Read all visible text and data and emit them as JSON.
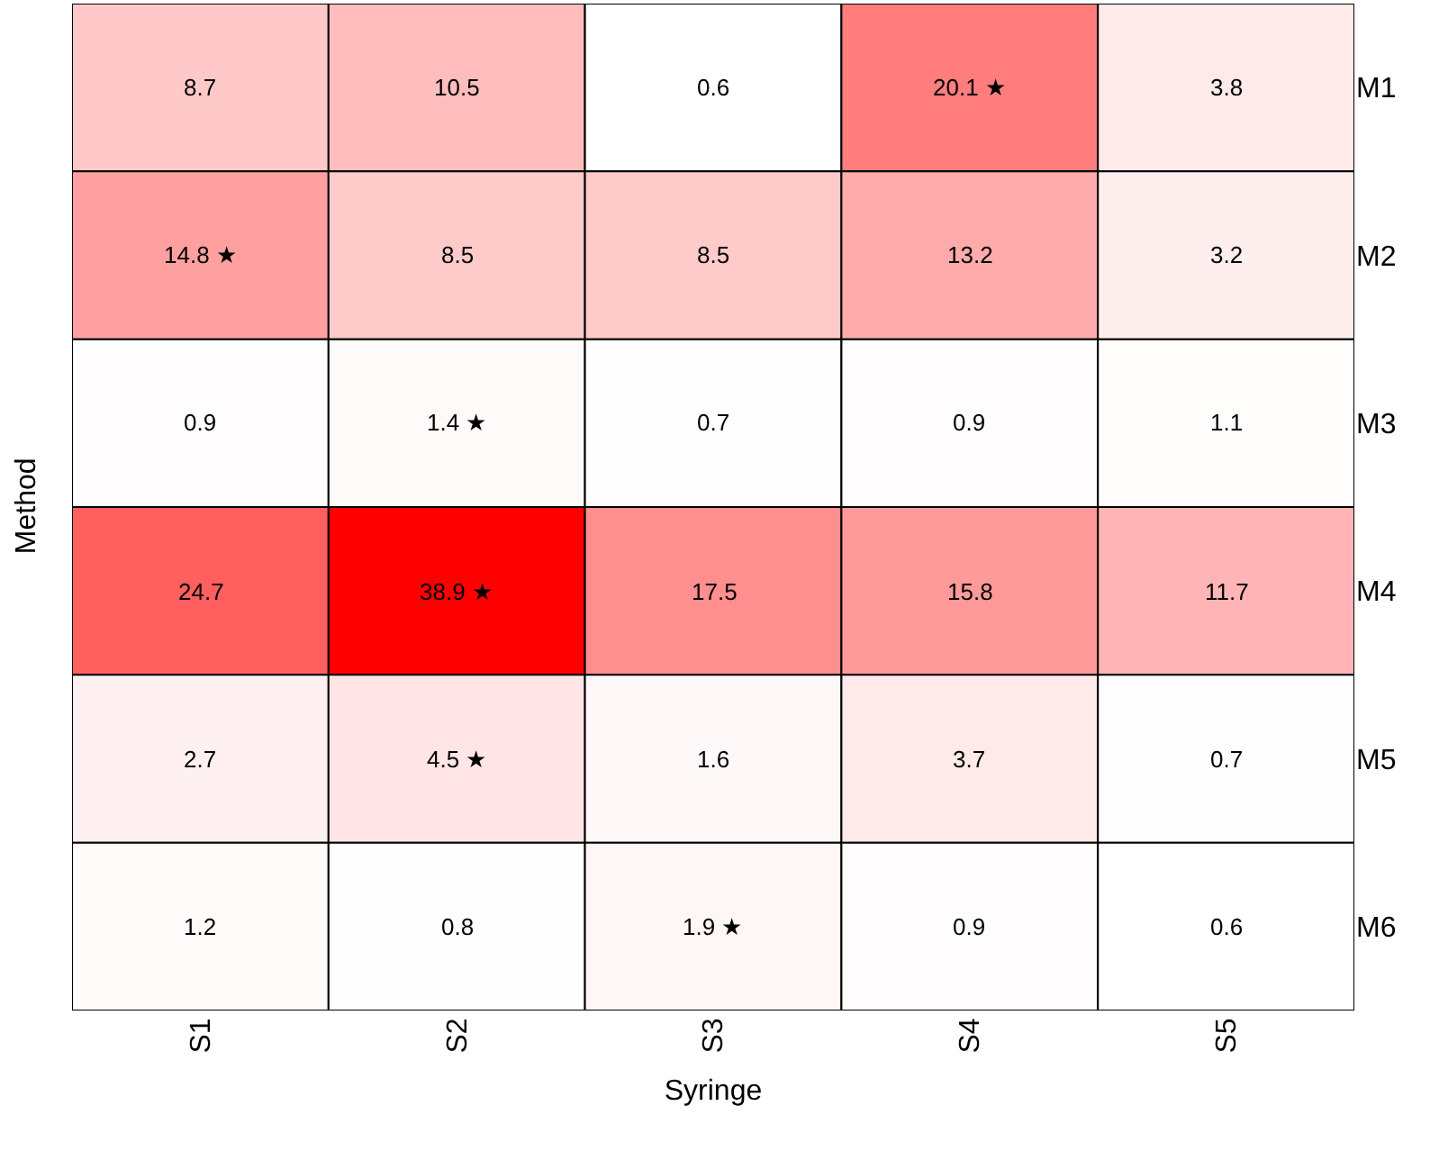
{
  "chart_data": {
    "type": "heatmap",
    "xlabel": "Syringe",
    "ylabel": "Method",
    "categories": [
      "S1",
      "S2",
      "S3",
      "S4",
      "S5"
    ],
    "y_categories": [
      "M1",
      "M2",
      "M3",
      "M4",
      "M5",
      "M6"
    ],
    "cells": [
      [
        8.7,
        10.5,
        0.6,
        20.1,
        3.8
      ],
      [
        14.8,
        8.5,
        8.5,
        13.2,
        3.2
      ],
      [
        0.9,
        1.4,
        0.7,
        0.9,
        1.1
      ],
      [
        24.7,
        38.9,
        17.5,
        15.8,
        11.7
      ],
      [
        2.7,
        4.5,
        1.6,
        3.7,
        0.7
      ],
      [
        1.2,
        0.8,
        1.9,
        0.9,
        0.6
      ]
    ],
    "cell_labels": [
      [
        "8.7",
        "10.5",
        "0.6",
        "20.1 ★",
        "3.8"
      ],
      [
        "14.8 ★",
        "8.5",
        "8.5",
        "13.2",
        "3.2"
      ],
      [
        "0.9",
        "1.4 ★",
        "0.7",
        "0.9",
        "1.1"
      ],
      [
        "24.7",
        "38.9 ★",
        "17.5",
        "15.8",
        "11.7"
      ],
      [
        "2.7",
        "4.5 ★",
        "1.6",
        "3.7",
        "0.7"
      ],
      [
        "1.2",
        "0.8",
        "1.9 ★",
        "0.9",
        "0.6"
      ]
    ],
    "colors": [
      "#ffffff",
      "#ff0000"
    ]
  }
}
